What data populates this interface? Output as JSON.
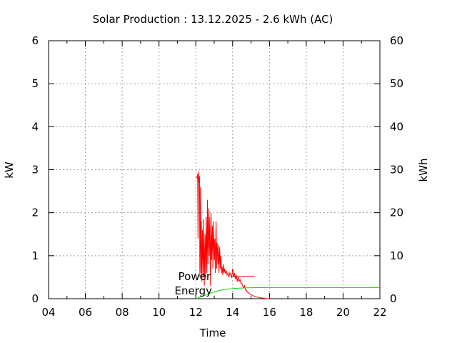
{
  "chart_data": {
    "type": "line",
    "title": "Solar Production : 13.12.2025 - 2.6 kWh (AC)",
    "xlabel": "Time",
    "ylabel": "kW",
    "y2label": "kWh",
    "xlim": [
      4,
      22
    ],
    "ylim": [
      0,
      6
    ],
    "y2lim": [
      0,
      60
    ],
    "x_ticks": [
      "04",
      "06",
      "08",
      "10",
      "12",
      "14",
      "16",
      "18",
      "20",
      "22"
    ],
    "y_ticks": [
      "0",
      "1",
      "2",
      "3",
      "4",
      "5",
      "6"
    ],
    "y2_ticks": [
      "0",
      "10",
      "20",
      "30",
      "40",
      "50",
      "60"
    ],
    "grid": true,
    "legend_position": "inside, left of the samples",
    "series": [
      {
        "name": "Power",
        "axis": "left",
        "color": "#ff0000",
        "x": [
          12.05,
          12.1,
          12.12,
          12.15,
          12.17,
          12.2,
          12.22,
          12.25,
          12.28,
          12.3,
          12.33,
          12.36,
          12.4,
          12.43,
          12.46,
          12.5,
          12.53,
          12.56,
          12.6,
          12.63,
          12.66,
          12.7,
          12.73,
          12.76,
          12.8,
          12.83,
          12.86,
          12.9,
          12.93,
          12.96,
          13.0,
          13.03,
          13.06,
          13.1,
          13.13,
          13.16,
          13.2,
          13.23,
          13.26,
          13.3,
          13.33,
          13.36,
          13.4,
          13.43,
          13.46,
          13.5,
          13.53,
          13.56,
          13.6,
          13.65,
          13.7,
          13.75,
          13.8,
          13.85,
          13.9,
          13.95,
          14.0,
          14.05,
          14.1,
          14.15,
          14.2,
          14.25,
          14.3,
          14.35,
          14.4,
          14.45,
          14.5,
          14.55,
          14.6,
          14.65,
          14.7,
          14.75,
          14.8,
          14.85,
          14.9,
          14.95,
          15.0,
          15.05,
          15.1,
          15.15,
          15.2,
          15.3,
          15.4,
          15.5,
          15.6,
          15.7,
          15.8,
          15.9,
          16.0
        ],
        "values": [
          2.8,
          2.9,
          1.4,
          2.95,
          2.7,
          2.85,
          0.5,
          2.6,
          0.6,
          1.8,
          0.4,
          1.6,
          0.5,
          1.85,
          0.3,
          1.5,
          0.45,
          1.9,
          0.6,
          2.3,
          0.8,
          2.1,
          1.0,
          1.9,
          0.3,
          2.0,
          0.9,
          1.7,
          0.7,
          1.8,
          0.9,
          1.4,
          0.6,
          1.8,
          0.7,
          1.3,
          0.8,
          1.25,
          0.6,
          1.2,
          0.7,
          1.0,
          0.6,
          0.75,
          0.55,
          0.8,
          0.6,
          0.7,
          0.6,
          0.65,
          0.55,
          0.6,
          0.5,
          0.6,
          0.55,
          0.5,
          0.7,
          0.5,
          0.6,
          0.45,
          0.55,
          0.4,
          0.5,
          0.4,
          0.45,
          0.35,
          0.35,
          0.3,
          0.25,
          0.3,
          0.2,
          0.2,
          0.15,
          0.15,
          0.12,
          0.1,
          0.1,
          0.08,
          0.08,
          0.06,
          0.05,
          0.04,
          0.03,
          0.02,
          0.015,
          0.01,
          0.005,
          0.0,
          0.0
        ]
      },
      {
        "name": "Energy",
        "axis": "right",
        "color": "#00dd00",
        "x": [
          12.05,
          12.3,
          12.5,
          12.75,
          13.0,
          13.25,
          13.5,
          13.75,
          14.0,
          14.25,
          14.5,
          14.75,
          15.0,
          15.5,
          16.0,
          17.0,
          18.0,
          19.0,
          20.0,
          21.0,
          22.0
        ],
        "values": [
          0.0,
          0.5,
          0.8,
          1.2,
          1.6,
          1.9,
          2.1,
          2.25,
          2.35,
          2.42,
          2.48,
          2.53,
          2.56,
          2.58,
          2.6,
          2.6,
          2.6,
          2.6,
          2.6,
          2.6,
          2.6
        ]
      }
    ],
    "annotations": [
      {
        "series": "Power",
        "at": 0.52
      }
    ]
  }
}
